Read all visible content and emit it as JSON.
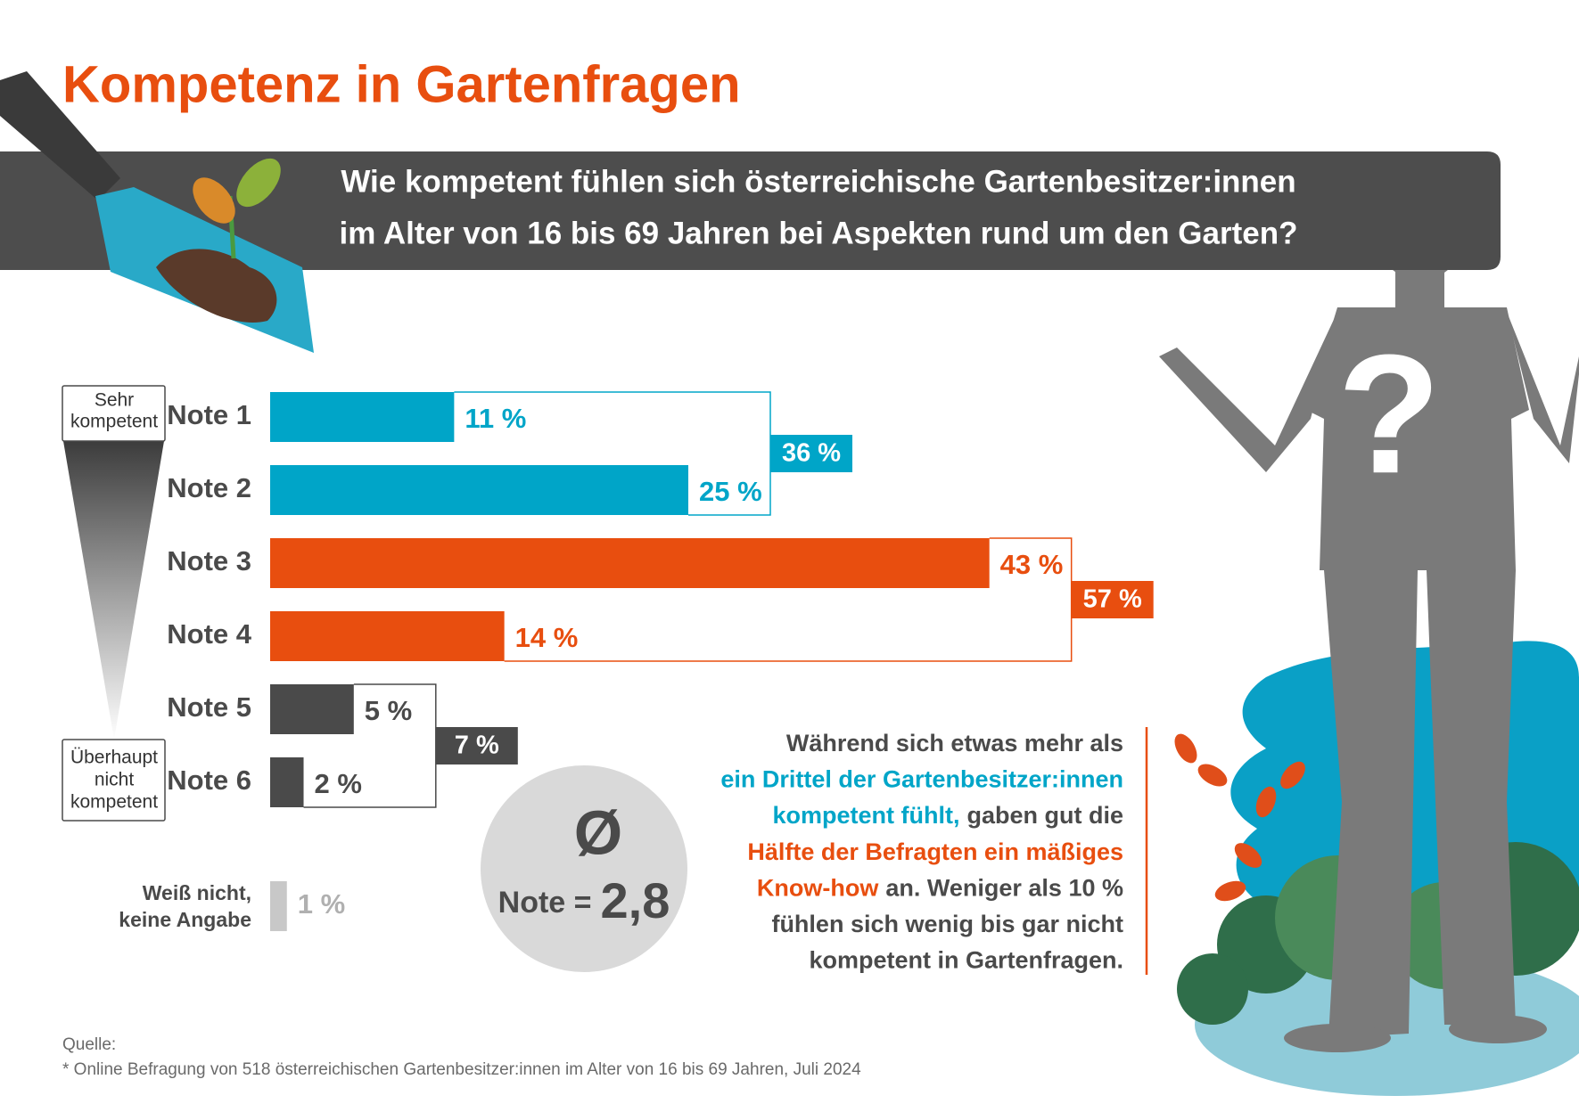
{
  "chart_data": {
    "type": "bar",
    "orientation": "horizontal",
    "title": "Kompetenz in Gartenfragen",
    "subtitle": [
      "Wie kompetent fühlen sich österreichische Gartenbesitzer:innen",
      "im Alter von 16 bis 69 Jahren bei Aspekten rund um den Garten?"
    ],
    "groups": [
      {
        "categories": [
          "Note 1",
          "Note 2"
        ],
        "values": [
          11,
          25
        ],
        "value_labels": [
          "11 %",
          "25 %"
        ],
        "color": "#00a5c8",
        "total": 36,
        "total_label": "36 %"
      },
      {
        "categories": [
          "Note 3",
          "Note 4"
        ],
        "values": [
          43,
          14
        ],
        "value_labels": [
          "43 %",
          "14 %"
        ],
        "color": "#e84e0f",
        "total": 57,
        "total_label": "57 %"
      },
      {
        "categories": [
          "Note 5",
          "Note 6"
        ],
        "values": [
          5,
          2
        ],
        "value_labels": [
          "5 %",
          "2 %"
        ],
        "color": "#4a4a4a",
        "total": 7,
        "total_label": "7 %"
      }
    ],
    "no_answer": {
      "label": [
        "Weiß nicht,",
        "keine Angabe"
      ],
      "value": 1,
      "value_label": "1 %",
      "color": "#c8c8c8"
    },
    "scale_labels": {
      "top": [
        "Sehr",
        "kompetent"
      ],
      "bottom": [
        "Überhaupt",
        "nicht",
        "kompetent"
      ]
    },
    "average": {
      "symbol": "Ø",
      "label": "Note =",
      "value": 2.8,
      "value_label": "2,8"
    },
    "summary": [
      [
        {
          "text": "Während sich etwas mehr als",
          "style": "dark"
        }
      ],
      [
        {
          "text": "ein Drittel der Gartenbesitzer:innen",
          "style": "teal"
        }
      ],
      [
        {
          "text": "kompetent fühlt,",
          "style": "teal"
        },
        {
          "text": "gaben gut die",
          "style": "dark"
        }
      ],
      [
        {
          "text": "Hälfte der Befragten ein mäßiges",
          "style": "orange"
        }
      ],
      [
        {
          "text": "Know-how",
          "style": "orange"
        },
        {
          "text": "an. Weniger als 10 %",
          "style": "dark"
        }
      ],
      [
        {
          "text": "fühlen sich wenig bis gar nicht",
          "style": "dark"
        }
      ],
      [
        {
          "text": "kompetent in Gartenfragen.",
          "style": "dark"
        }
      ]
    ],
    "source": {
      "label": "Quelle:",
      "text": "* Online Befragung von 518 österreichischen Gartenbesitzer:innen im Alter von 16 bis 69 Jahren, Juli 2024"
    },
    "illustration_mark": "?"
  }
}
